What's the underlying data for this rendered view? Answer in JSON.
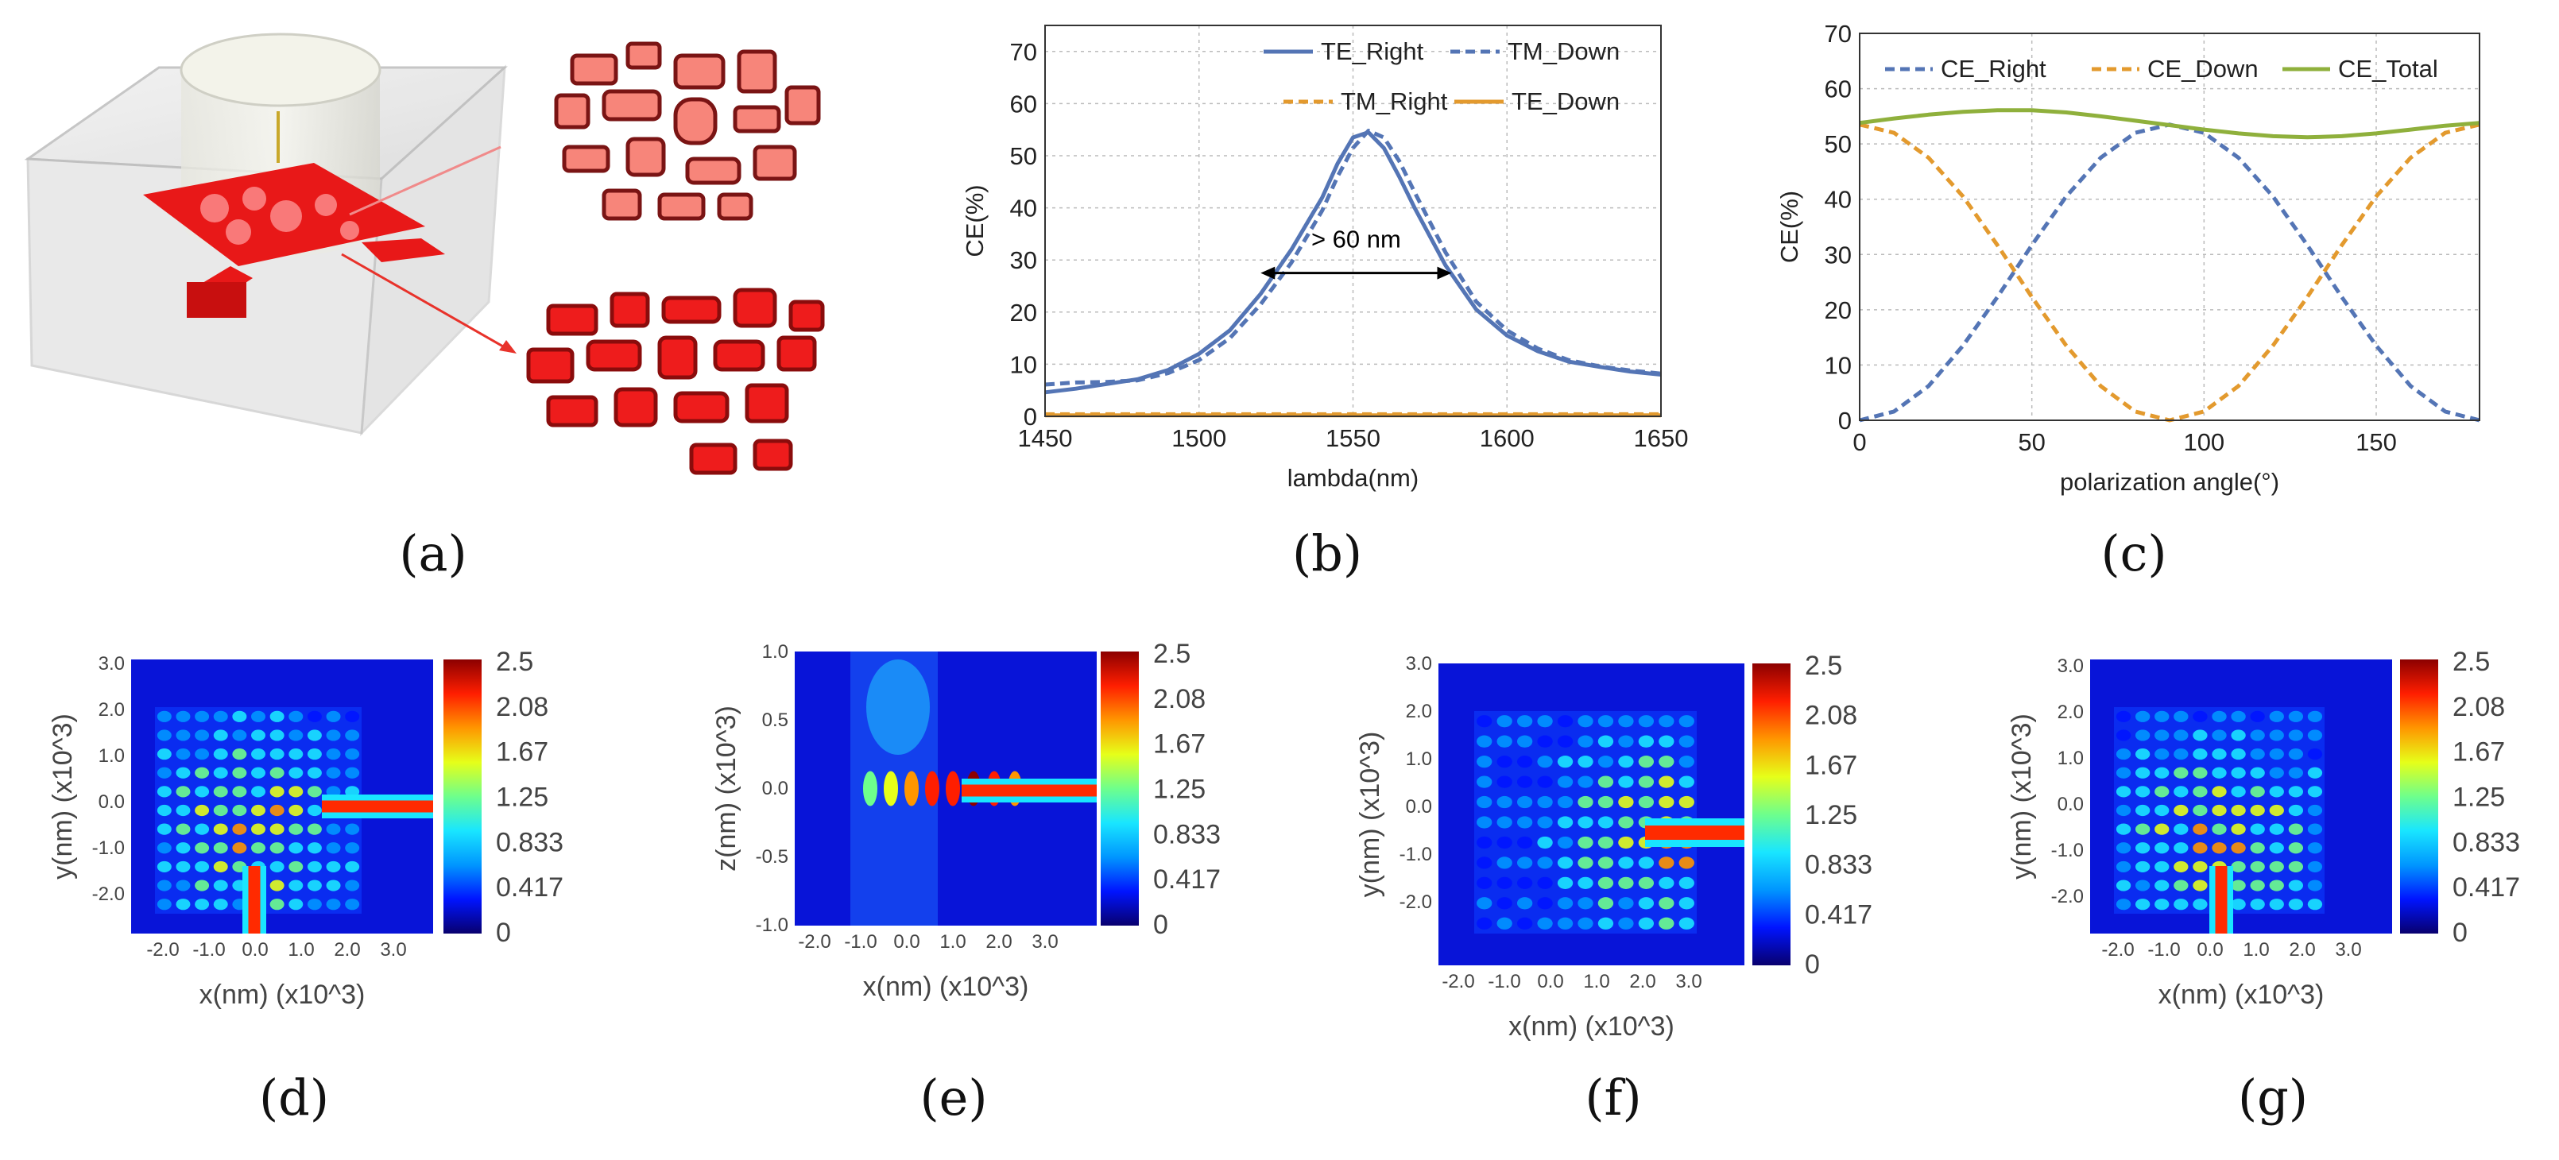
{
  "captions": [
    "(a)",
    "(b)",
    "(c)",
    "(d)",
    "(e)",
    "(f)",
    "(g)"
  ],
  "colors": {
    "blue": "#5475b5",
    "orange": "#e39a2e",
    "green": "#8fb03c",
    "arrow": "#e8322a",
    "device_red": "#e81818"
  },
  "chart_data": [
    {
      "id": "b",
      "type": "line",
      "xlabel": "lambda(nm)",
      "ylabel": "CE(%)",
      "xlim": [
        1450,
        1650
      ],
      "ylim": [
        0,
        75
      ],
      "xticks": [
        1450,
        1500,
        1550,
        1600,
        1650
      ],
      "yticks": [
        0,
        10,
        20,
        30,
        40,
        50,
        60,
        70
      ],
      "grid": true,
      "legend": {
        "position": "top",
        "entries": [
          "TE_Right",
          "TM_Down",
          "TM_Right",
          "TE_Down"
        ]
      },
      "annotation": "> 60 nm",
      "annotation_range": [
        1520,
        1582
      ],
      "annotation_y": 27.5,
      "x": [
        1450,
        1460,
        1470,
        1480,
        1490,
        1500,
        1510,
        1520,
        1530,
        1540,
        1545,
        1550,
        1555,
        1560,
        1565,
        1570,
        1580,
        1590,
        1600,
        1610,
        1620,
        1630,
        1640,
        1650
      ],
      "series": [
        {
          "name": "TE_Right",
          "style": "solid",
          "color": "blue",
          "values": [
            4.6,
            5.3,
            6.2,
            7.1,
            8.9,
            12.0,
            16.5,
            23.5,
            32.0,
            42.0,
            48.5,
            53.5,
            54.5,
            51.5,
            46.0,
            40.0,
            29.0,
            20.5,
            15.5,
            12.5,
            10.5,
            9.5,
            8.6,
            8.0
          ]
        },
        {
          "name": "TM_Down",
          "style": "dashed",
          "color": "blue",
          "values": [
            6.1,
            6.5,
            6.6,
            6.9,
            8.3,
            10.8,
            15.0,
            21.5,
            29.5,
            39.5,
            46.0,
            51.5,
            54.8,
            53.5,
            49.0,
            43.0,
            31.5,
            22.0,
            16.5,
            13.0,
            10.8,
            9.6,
            8.8,
            8.2
          ]
        },
        {
          "name": "TM_Right",
          "style": "dashed",
          "color": "orange",
          "values": [
            0.4,
            0.4,
            0.4,
            0.4,
            0.4,
            0.4,
            0.4,
            0.4,
            0.4,
            0.4,
            0.4,
            0.4,
            0.4,
            0.4,
            0.4,
            0.4,
            0.4,
            0.4,
            0.4,
            0.4,
            0.4,
            0.4,
            0.4,
            0.4
          ]
        },
        {
          "name": "TE_Down",
          "style": "solid",
          "color": "orange",
          "values": [
            0.2,
            0.2,
            0.2,
            0.2,
            0.2,
            0.2,
            0.2,
            0.2,
            0.2,
            0.2,
            0.2,
            0.2,
            0.2,
            0.2,
            0.2,
            0.2,
            0.2,
            0.2,
            0.2,
            0.2,
            0.2,
            0.2,
            0.2,
            0.2
          ]
        }
      ]
    },
    {
      "id": "c",
      "type": "line",
      "xlabel": "polarization angle(°)",
      "ylabel": "CE(%)",
      "xlim": [
        0,
        180
      ],
      "ylim": [
        0,
        70
      ],
      "xticks": [
        0,
        50,
        100,
        150
      ],
      "yticks": [
        0,
        10,
        20,
        30,
        40,
        50,
        60,
        70
      ],
      "grid": true,
      "legend": {
        "position": "top",
        "entries": [
          "CE_Right",
          "CE_Down",
          "CE_Total"
        ]
      },
      "x": [
        0,
        10,
        20,
        30,
        40,
        50,
        60,
        70,
        80,
        90,
        100,
        110,
        120,
        130,
        140,
        150,
        160,
        170,
        180
      ],
      "series": [
        {
          "name": "CE_Right",
          "style": "dashed",
          "color": "blue",
          "values": [
            0.0,
            1.6,
            6.2,
            13.5,
            22.3,
            31.7,
            40.5,
            47.5,
            52.0,
            53.5,
            52.0,
            47.5,
            40.5,
            31.7,
            22.3,
            13.5,
            6.2,
            1.6,
            0.0
          ]
        },
        {
          "name": "CE_Down",
          "style": "dashed",
          "color": "orange",
          "values": [
            53.5,
            52.0,
            47.5,
            40.5,
            31.7,
            22.3,
            13.5,
            6.2,
            1.6,
            0.0,
            1.6,
            6.2,
            13.5,
            22.3,
            31.7,
            40.5,
            47.5,
            52.0,
            53.5
          ]
        },
        {
          "name": "CE_Total",
          "style": "solid",
          "color": "green",
          "values": [
            53.8,
            54.6,
            55.3,
            55.8,
            56.1,
            56.1,
            55.7,
            55.0,
            54.2,
            53.4,
            52.6,
            51.9,
            51.4,
            51.2,
            51.4,
            51.9,
            52.6,
            53.3,
            53.8
          ]
        }
      ]
    },
    {
      "id": "d",
      "type": "heatmap",
      "xlabel": "x(nm) (x10^3)",
      "ylabel": "y(nm) (x10^3)",
      "xticks": [
        "-2.0",
        "-1.0",
        "0.0",
        "1.0",
        "2.0",
        "3.0"
      ],
      "yticks": [
        "3.0",
        "2.0",
        "1.0",
        "0.0",
        "-1.0",
        "-2.0"
      ],
      "colorbar": [
        "2.5",
        "2.08",
        "1.67",
        "1.25",
        "0.833",
        "0.417",
        "0"
      ]
    },
    {
      "id": "e",
      "type": "heatmap",
      "xlabel": "x(nm) (x10^3)",
      "ylabel": "z(nm) (x10^3)",
      "xticks": [
        "-2.0",
        "-1.0",
        "0.0",
        "1.0",
        "2.0",
        "3.0"
      ],
      "yticks": [
        "1.0",
        "0.5",
        "0.0",
        "-0.5",
        "-1.0"
      ],
      "colorbar": [
        "2.5",
        "2.08",
        "1.67",
        "1.25",
        "0.833",
        "0.417",
        "0"
      ]
    },
    {
      "id": "f",
      "type": "heatmap",
      "xlabel": "x(nm) (x10^3)",
      "ylabel": "y(nm) (x10^3)",
      "xticks": [
        "-2.0",
        "-1.0",
        "0.0",
        "1.0",
        "2.0",
        "3.0"
      ],
      "yticks": [
        "3.0",
        "2.0",
        "1.0",
        "0.0",
        "-1.0",
        "-2.0"
      ],
      "colorbar": [
        "2.5",
        "2.08",
        "1.67",
        "1.25",
        "0.833",
        "0.417",
        "0"
      ]
    },
    {
      "id": "g",
      "type": "heatmap",
      "xlabel": "x(nm) (x10^3)",
      "ylabel": "y(nm) (x10^3)",
      "xticks": [
        "-2.0",
        "-1.0",
        "0.0",
        "1.0",
        "2.0",
        "3.0"
      ],
      "yticks": [
        "3.0",
        "2.0",
        "1.0",
        "0.0",
        "-1.0",
        "-2.0"
      ],
      "colorbar": [
        "2.5",
        "2.08",
        "1.67",
        "1.25",
        "0.833",
        "0.417",
        "0"
      ]
    }
  ]
}
